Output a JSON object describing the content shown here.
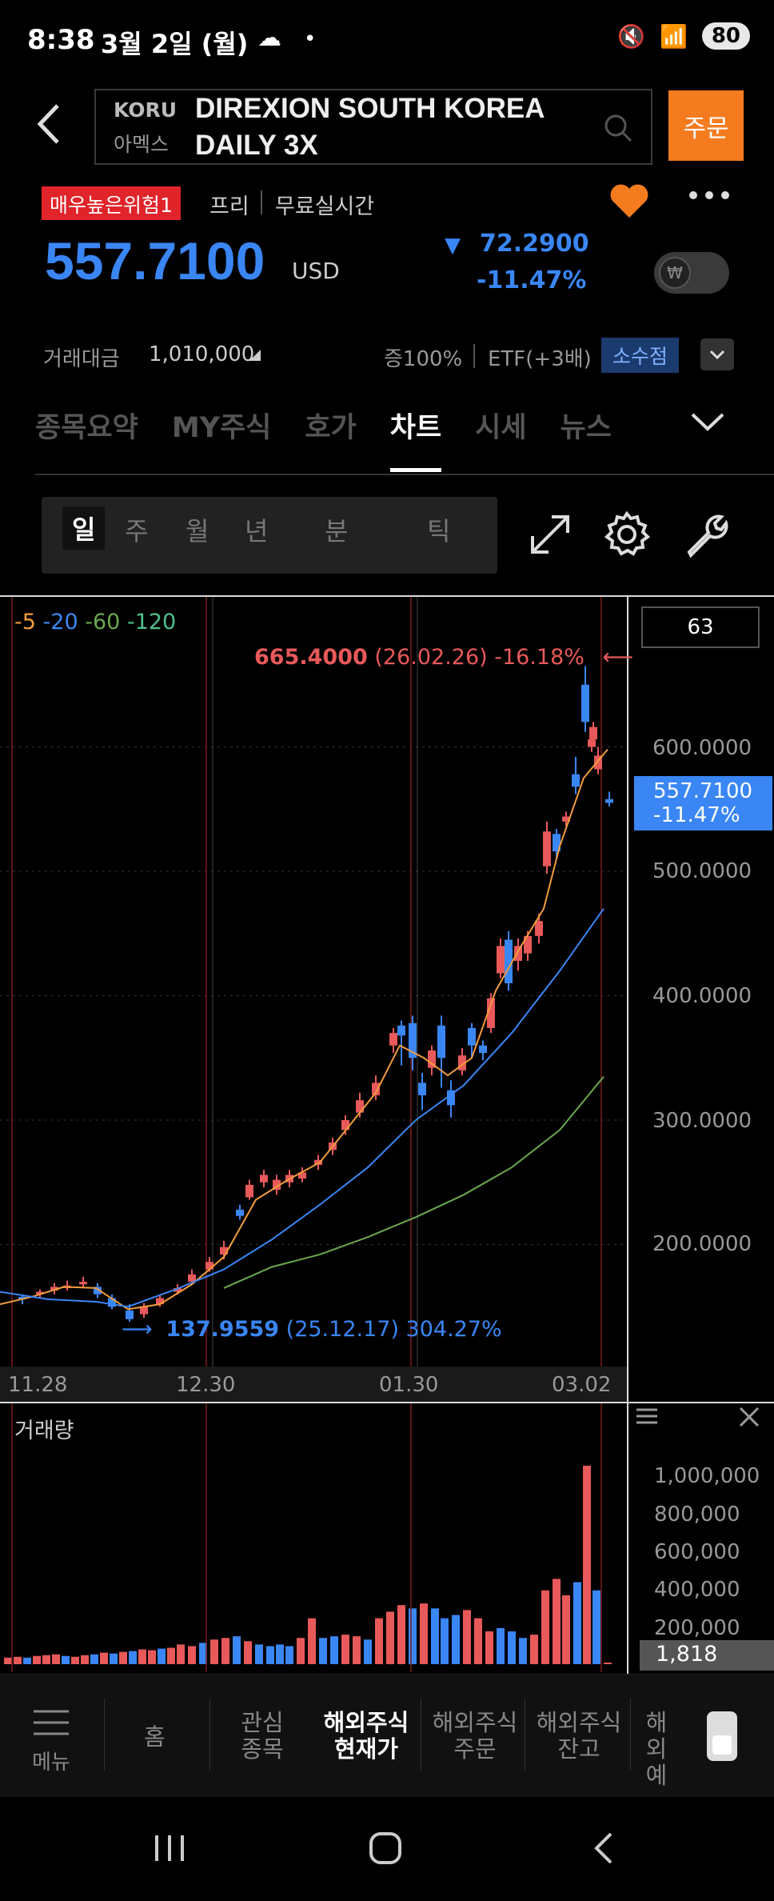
{
  "status": {
    "time": "8:38",
    "date": "3월 2일 (월)",
    "battery": "80"
  },
  "header": {
    "ticker": "KORU",
    "exchange": "아멕스",
    "name": "DIREXION SOUTH KOREA DAILY 3X",
    "order_label": "주문"
  },
  "quote": {
    "risk_badge": "매우높은위험1",
    "free_label": "프리",
    "realtime_label": "무료실시간",
    "price": "557.7100",
    "currency": "USD",
    "change": "72.2900",
    "change_pct": "-11.47%",
    "toggle_symbol": "₩",
    "trade_value_label": "거래대금",
    "trade_value": "1,010,000",
    "margin": "증100%",
    "etf": "ETF(+3배)",
    "fraction_badge": "소수점"
  },
  "tabs": [
    "종목요약",
    "MY주식",
    "호가",
    "차트",
    "시세",
    "뉴스"
  ],
  "active_tab": "차트",
  "periods": [
    "일",
    "주",
    "월",
    "년",
    "분",
    "틱"
  ],
  "active_period": "일",
  "chart": {
    "legend": [
      "5",
      "20",
      "60",
      "120"
    ],
    "legend_colors": [
      "#f39c3c",
      "#3a86f5",
      "#6aa84f",
      "#4fc08d"
    ],
    "count": "63",
    "high_value": "665.4000",
    "high_detail": "(26.02.26) -16.18%",
    "low_value": "137.9559",
    "low_detail": "(25.12.17) 304.27%",
    "price_ticks": [
      "600.0000",
      "500.0000",
      "400.0000",
      "300.0000",
      "200.0000"
    ],
    "current_price": "557.7100",
    "current_pct": "-11.47%",
    "dates": [
      "11.28",
      "12.30",
      "01.30",
      "03.02"
    ],
    "volume_label": "거래량",
    "volume_ticks": [
      "1,000,000",
      "800,000",
      "600,000",
      "400,000",
      "200,000"
    ],
    "volume_current": "1,818",
    "up_color": "#e8595a",
    "down_color": "#3a86f5"
  },
  "chart_data": {
    "type": "candlestick",
    "ylim": [
      100,
      700
    ],
    "series": [
      {
        "name": "5",
        "values": []
      },
      {
        "name": "20",
        "values": []
      },
      {
        "name": "60",
        "values": []
      },
      {
        "name": "120",
        "values": []
      }
    ],
    "high": 665.4,
    "low": 137.9559,
    "last_close": 557.71
  },
  "bottom_nav": {
    "menu_label": "메뉴",
    "items": [
      "홈",
      "관심\n종목",
      "해외주식\n현재가",
      "해외주식\n주문",
      "해외주식\n잔고",
      "해외\n예"
    ]
  }
}
